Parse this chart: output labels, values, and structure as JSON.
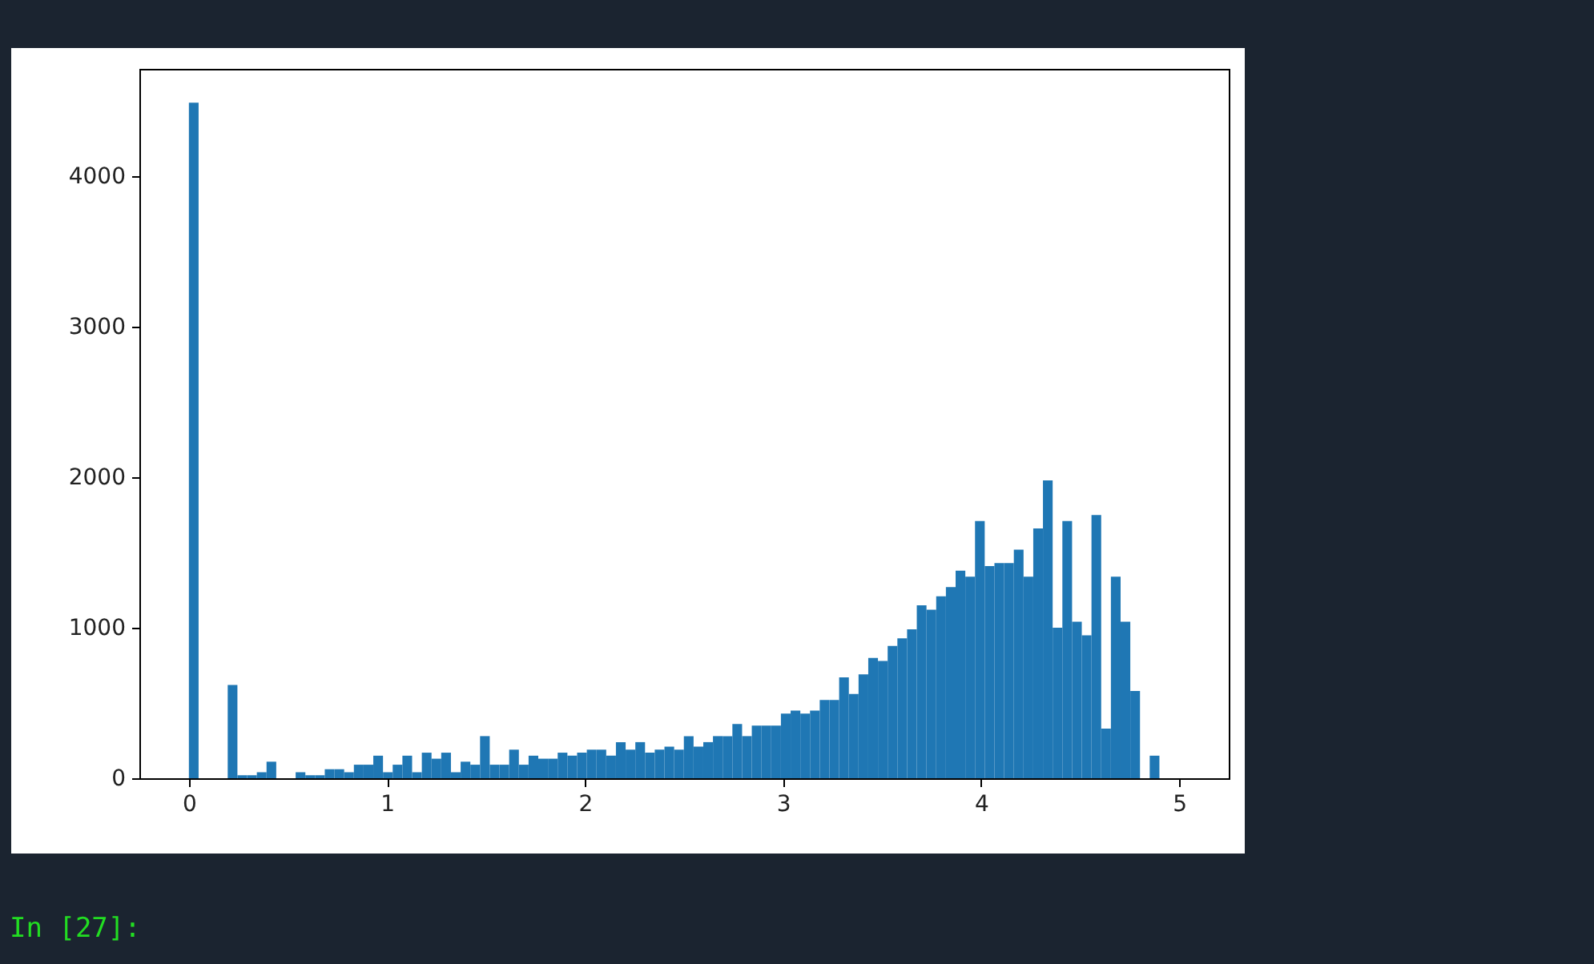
{
  "chart_data": {
    "type": "histogram",
    "bins": [
      0,
      0.049,
      0.098,
      0.147,
      0.196,
      0.245,
      0.294,
      0.343,
      0.392,
      0.441,
      0.49,
      0.539,
      0.588,
      0.637,
      0.686,
      0.735,
      0.784,
      0.833,
      0.882,
      0.931,
      0.98,
      1.029,
      1.078,
      1.127,
      1.176,
      1.225,
      1.274,
      1.323,
      1.372,
      1.421,
      1.47,
      1.519,
      1.568,
      1.617,
      1.666,
      1.715,
      1.764,
      1.813,
      1.862,
      1.911,
      1.96,
      2.009,
      2.058,
      2.107,
      2.156,
      2.205,
      2.254,
      2.303,
      2.352,
      2.401,
      2.45,
      2.499,
      2.548,
      2.597,
      2.646,
      2.695,
      2.744,
      2.793,
      2.842,
      2.891,
      2.94,
      2.989,
      3.038,
      3.087,
      3.136,
      3.185,
      3.234,
      3.283,
      3.332,
      3.381,
      3.43,
      3.479,
      3.528,
      3.577,
      3.626,
      3.675,
      3.724,
      3.773,
      3.822,
      3.871,
      3.92,
      3.969,
      4.018,
      4.067,
      4.116,
      4.165,
      4.214,
      4.263,
      4.312,
      4.361,
      4.41,
      4.459,
      4.508,
      4.557,
      4.606,
      4.655,
      4.704,
      4.753,
      4.802,
      4.851,
      4.9
    ],
    "values": [
      4490,
      0,
      0,
      0,
      620,
      20,
      20,
      40,
      110,
      0,
      0,
      40,
      20,
      20,
      60,
      60,
      40,
      90,
      90,
      150,
      40,
      90,
      150,
      40,
      170,
      130,
      170,
      40,
      110,
      90,
      280,
      90,
      90,
      190,
      90,
      150,
      130,
      130,
      170,
      150,
      170,
      190,
      190,
      150,
      240,
      190,
      240,
      170,
      190,
      210,
      190,
      280,
      210,
      240,
      280,
      280,
      360,
      280,
      350,
      350,
      350,
      430,
      450,
      430,
      450,
      520,
      520,
      670,
      560,
      690,
      800,
      780,
      880,
      930,
      990,
      1150,
      1120,
      1210,
      1270,
      1380,
      1340,
      1710,
      1410,
      1430,
      1430,
      1520,
      1340,
      1660,
      1980,
      1000,
      1710,
      1040,
      950,
      1750,
      330,
      1340,
      1040,
      580,
      0,
      150
    ],
    "color": "#1f77b4",
    "xlim": [
      -0.25,
      5.25
    ],
    "ylim": [
      0,
      4715
    ],
    "xticks": [
      0,
      1,
      2,
      3,
      4,
      5
    ],
    "yticks": [
      0,
      1000,
      2000,
      3000,
      4000
    ],
    "annotations": [
      "In [27]:"
    ]
  }
}
